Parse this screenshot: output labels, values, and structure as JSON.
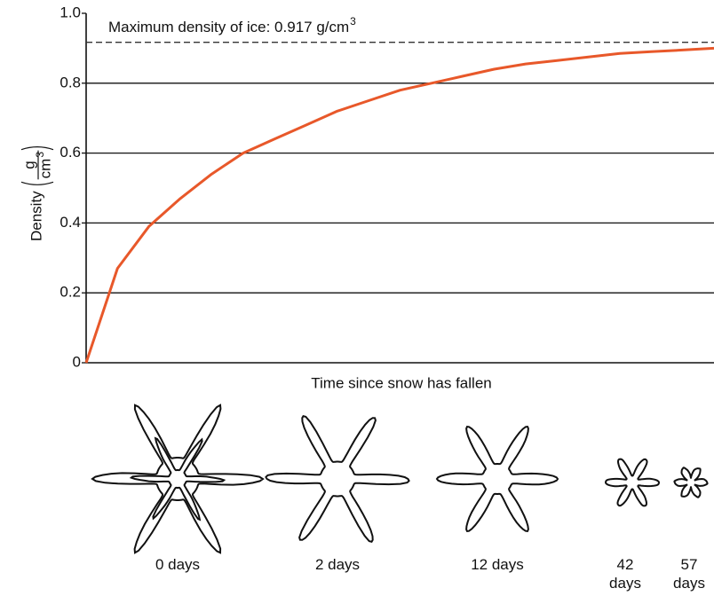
{
  "chart_data": {
    "type": "line",
    "y_label": "Density",
    "y_unit": {
      "numerator": "g",
      "denominator": "cm",
      "superscript": "3"
    },
    "x_label": "Time since snow has fallen",
    "categories": [
      null,
      null,
      null,
      null,
      null,
      null,
      null,
      null,
      null,
      null,
      null,
      null,
      null,
      null,
      null,
      null,
      null,
      null,
      null,
      null,
      null
    ],
    "values": [
      0,
      0.27,
      0.39,
      0.47,
      0.54,
      0.6,
      0.64,
      0.68,
      0.72,
      0.75,
      0.78,
      0.8,
      0.82,
      0.84,
      0.855,
      0.865,
      0.875,
      0.885,
      0.89,
      0.895,
      0.9
    ],
    "color": "#e8582a",
    "ylim": [
      0,
      1
    ],
    "yticks": [
      0,
      0.2,
      0.4,
      0.6,
      0.8,
      {
        "value": 1,
        "label": "1.0"
      }
    ],
    "grid": true,
    "reference_line": {
      "value": 0.917,
      "text": "Maximum density of ice: 0.917 g/cm",
      "superscript": "3"
    },
    "illustrations": [
      {
        "label": "0 days"
      },
      {
        "label": "2 days"
      },
      {
        "label": "12 days"
      },
      {
        "label": "42 days"
      },
      {
        "label": "57 days"
      }
    ]
  }
}
